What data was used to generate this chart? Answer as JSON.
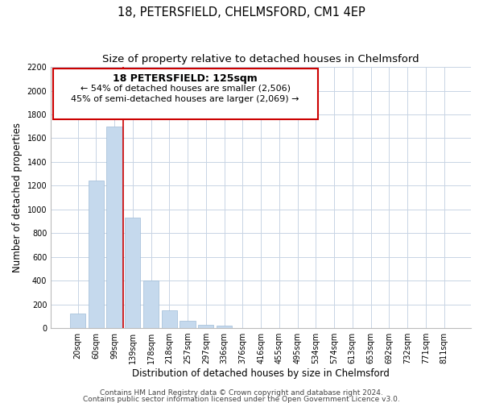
{
  "title": "18, PETERSFIELD, CHELMSFORD, CM1 4EP",
  "subtitle": "Size of property relative to detached houses in Chelmsford",
  "xlabel": "Distribution of detached houses by size in Chelmsford",
  "ylabel": "Number of detached properties",
  "bar_color": "#c5d9ed",
  "bar_edge_color": "#a0bcd8",
  "categories": [
    "20sqm",
    "60sqm",
    "99sqm",
    "139sqm",
    "178sqm",
    "218sqm",
    "257sqm",
    "297sqm",
    "336sqm",
    "376sqm",
    "416sqm",
    "455sqm",
    "495sqm",
    "534sqm",
    "574sqm",
    "613sqm",
    "653sqm",
    "692sqm",
    "732sqm",
    "771sqm",
    "811sqm"
  ],
  "values": [
    120,
    1245,
    1700,
    930,
    400,
    150,
    65,
    30,
    20,
    0,
    0,
    0,
    0,
    0,
    0,
    0,
    0,
    0,
    0,
    0,
    0
  ],
  "ylim": [
    0,
    2200
  ],
  "yticks": [
    0,
    200,
    400,
    600,
    800,
    1000,
    1200,
    1400,
    1600,
    1800,
    2000,
    2200
  ],
  "vline_x": 2.5,
  "annotation_title": "18 PETERSFIELD: 125sqm",
  "annotation_line1": "← 54% of detached houses are smaller (2,506)",
  "annotation_line2": "45% of semi-detached houses are larger (2,069) →",
  "vline_color": "#cc0000",
  "annotation_box_edge_color": "#cc0000",
  "footer_line1": "Contains HM Land Registry data © Crown copyright and database right 2024.",
  "footer_line2": "Contains public sector information licensed under the Open Government Licence v3.0.",
  "background_color": "#ffffff",
  "grid_color": "#c8d4e4",
  "title_fontsize": 10.5,
  "subtitle_fontsize": 9.5,
  "xlabel_fontsize": 8.5,
  "ylabel_fontsize": 8.5,
  "tick_fontsize": 7,
  "annotation_title_fontsize": 9,
  "annotation_fontsize": 8,
  "footer_fontsize": 6.5
}
